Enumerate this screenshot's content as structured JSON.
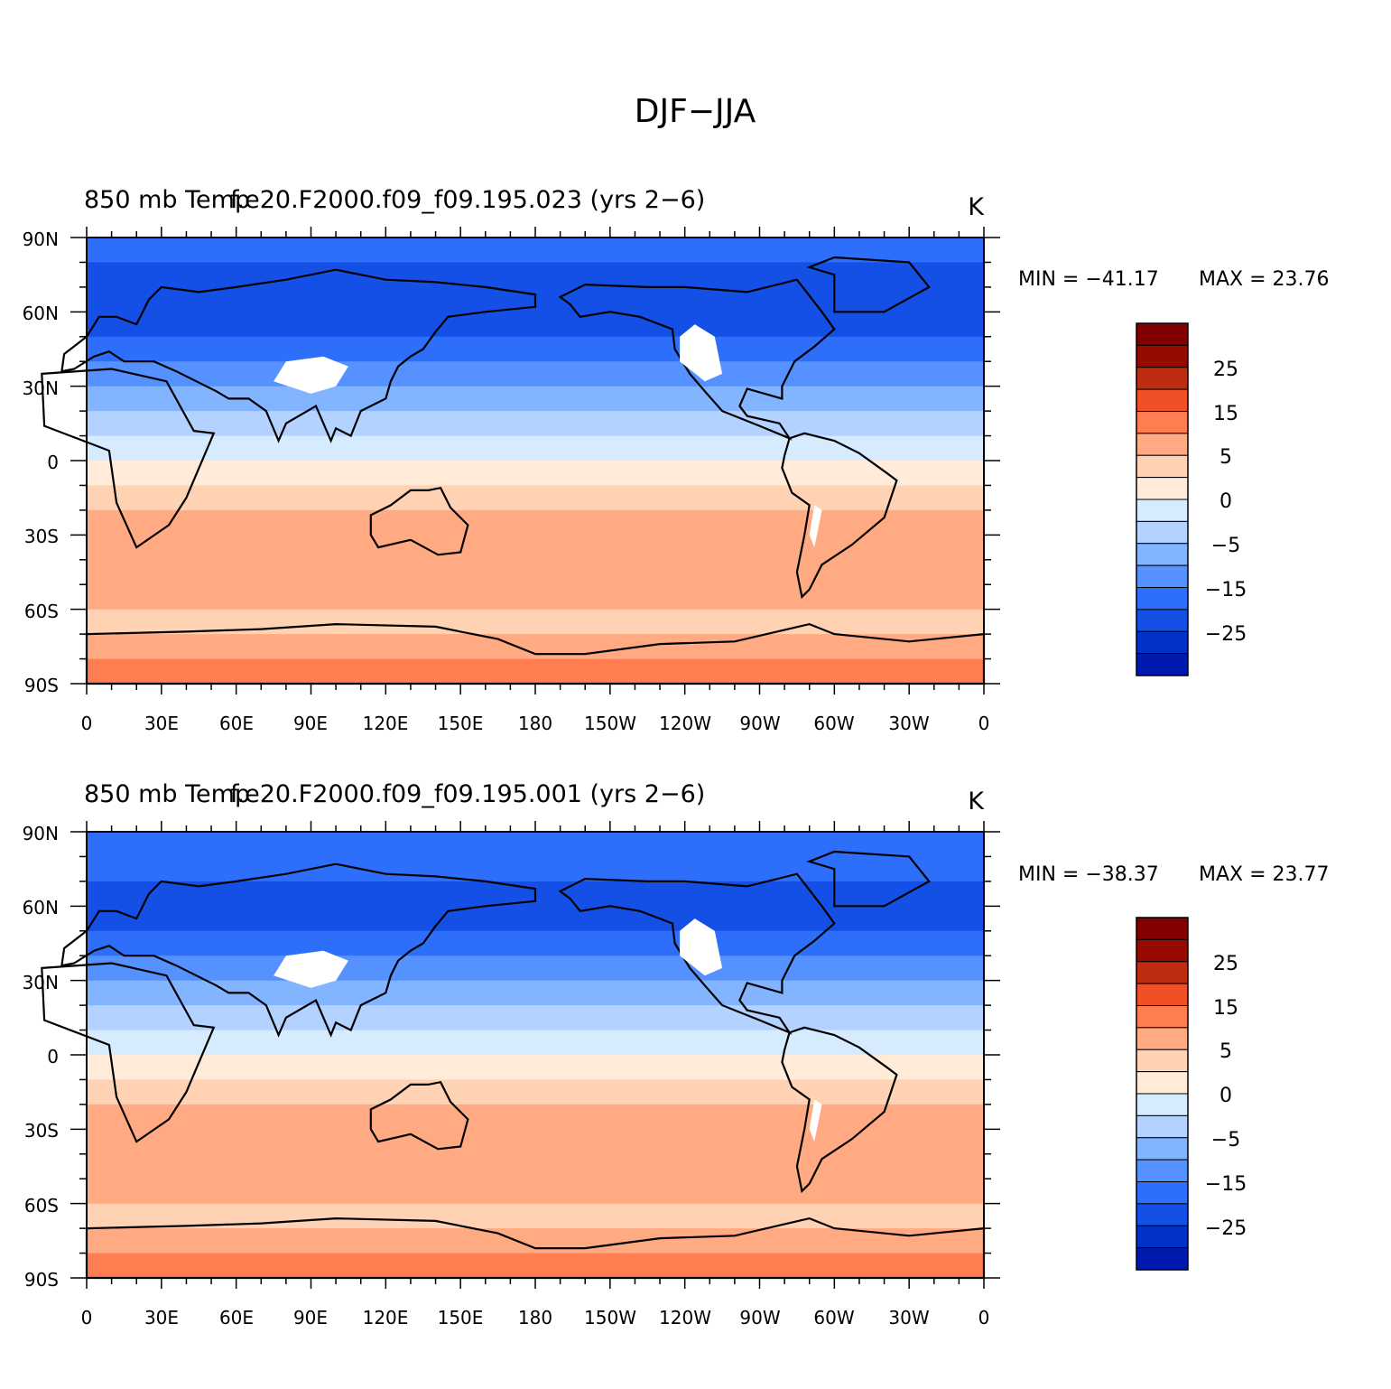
{
  "figure": {
    "title": "DJF−JJA"
  },
  "colors": {
    "bins": [
      "#000096",
      "#0019AF",
      "#0032C8",
      "#1450E6",
      "#2D6EFA",
      "#5591FF",
      "#82B4FF",
      "#B4D2FF",
      "#D7EBFF",
      "#FFEBD7",
      "#FFD2B4",
      "#FFAA82",
      "#FF7D50",
      "#F05028",
      "#BE2D0F",
      "#960A00",
      "#820000"
    ],
    "land_mask": "#ffffff",
    "coast": "#000000"
  },
  "axes": {
    "lat_labels": [
      "90N",
      "60N",
      "30N",
      "0",
      "30S",
      "60S",
      "90S"
    ],
    "lon_labels": [
      "0",
      "30E",
      "60E",
      "90E",
      "120E",
      "150E",
      "180",
      "150W",
      "120W",
      "90W",
      "60W",
      "30W",
      "0"
    ]
  },
  "colorbar": {
    "labels": [
      "25",
      "15",
      "5",
      "0",
      "−5",
      "−15",
      "−25"
    ]
  },
  "panels": [
    {
      "title_left": "850 mb Temp",
      "title_center": "f.e20.F2000.f09_f09.195.023 (yrs 2−6)",
      "units": "K",
      "min_label": "MIN = −41.17",
      "max_label": "MAX =   23.76"
    },
    {
      "title_left": "850 mb Temp",
      "title_center": "f.e20.F2000.f09_f09.195.001 (yrs 2−6)",
      "units": "K",
      "min_label": "MIN = −38.37",
      "max_label": "MAX =   23.77"
    }
  ],
  "chart_data": [
    {
      "type": "contour-map",
      "title": "f.e20.F2000.f09_f09.195.023 (yrs 2−6)",
      "variable": "850 mb Temp",
      "units": "K",
      "min": -41.17,
      "max": 23.76,
      "contour_levels": [
        -35,
        -30,
        -25,
        -20,
        -15,
        -10,
        -5,
        -2,
        0,
        2,
        5,
        10,
        15,
        20,
        25,
        30
      ],
      "zonal_profile": {
        "lat": [
          90,
          80,
          70,
          60,
          50,
          40,
          30,
          20,
          10,
          0,
          -10,
          -20,
          -30,
          -40,
          -50,
          -60,
          -70,
          -80,
          -90
        ],
        "value": [
          -18,
          -20,
          -22,
          -24,
          -22,
          -18,
          -12,
          -5,
          -2,
          -1,
          2,
          6,
          9,
          8,
          6,
          4,
          4,
          10,
          12
        ]
      }
    },
    {
      "type": "contour-map",
      "title": "f.e20.F2000.f09_f09.195.001 (yrs 2−6)",
      "variable": "850 mb Temp",
      "units": "K",
      "min": -38.37,
      "max": 23.77,
      "contour_levels": [
        -35,
        -30,
        -25,
        -20,
        -15,
        -10,
        -5,
        -2,
        0,
        2,
        5,
        10,
        15,
        20,
        25,
        30
      ],
      "zonal_profile": {
        "lat": [
          90,
          80,
          70,
          60,
          50,
          40,
          30,
          20,
          10,
          0,
          -10,
          -20,
          -30,
          -40,
          -50,
          -60,
          -70,
          -80,
          -90
        ],
        "value": [
          -16,
          -19,
          -21,
          -23,
          -21,
          -17,
          -11,
          -5,
          -2,
          0,
          2,
          6,
          9,
          7,
          6,
          4,
          4,
          10,
          12
        ]
      }
    }
  ]
}
